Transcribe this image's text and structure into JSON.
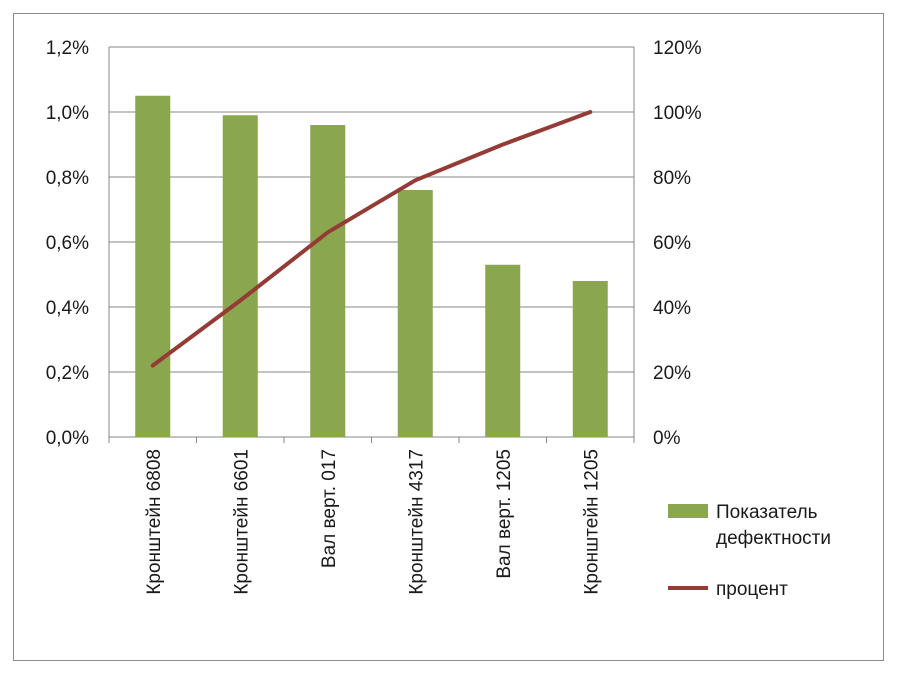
{
  "chart_data": {
    "type": "bar",
    "categories": [
      "Кронштейн 6808",
      "Кронштейн 6601",
      "Вал верт. 017",
      "Кронштейн 4317",
      "Вал верт. 1205",
      "Кронштейн 1205"
    ],
    "series": [
      {
        "name": "Показатель дефектности",
        "type": "bar",
        "axis": "left",
        "values": [
          1.05,
          0.99,
          0.96,
          0.76,
          0.53,
          0.48
        ]
      },
      {
        "name": "процент",
        "type": "line",
        "axis": "right",
        "values": [
          22,
          42,
          63,
          79,
          90,
          100
        ]
      }
    ],
    "left_axis": {
      "ylim": [
        0,
        1.2
      ],
      "ticks": [
        "0,0%",
        "0,2%",
        "0,4%",
        "0,6%",
        "0,8%",
        "1,0%",
        "1,2%"
      ]
    },
    "right_axis": {
      "ylim": [
        0,
        120
      ],
      "ticks": [
        "0%",
        "20%",
        "40%",
        "60%",
        "80%",
        "100%",
        "120%"
      ]
    },
    "legend": {
      "placement": "right",
      "bar_label_lines": [
        "Показатель",
        "дефектности"
      ],
      "line_label": "процент"
    },
    "colors": {
      "bar": "#8aa64e",
      "line": "#943b36",
      "grid": "#878787"
    },
    "grid": true
  }
}
